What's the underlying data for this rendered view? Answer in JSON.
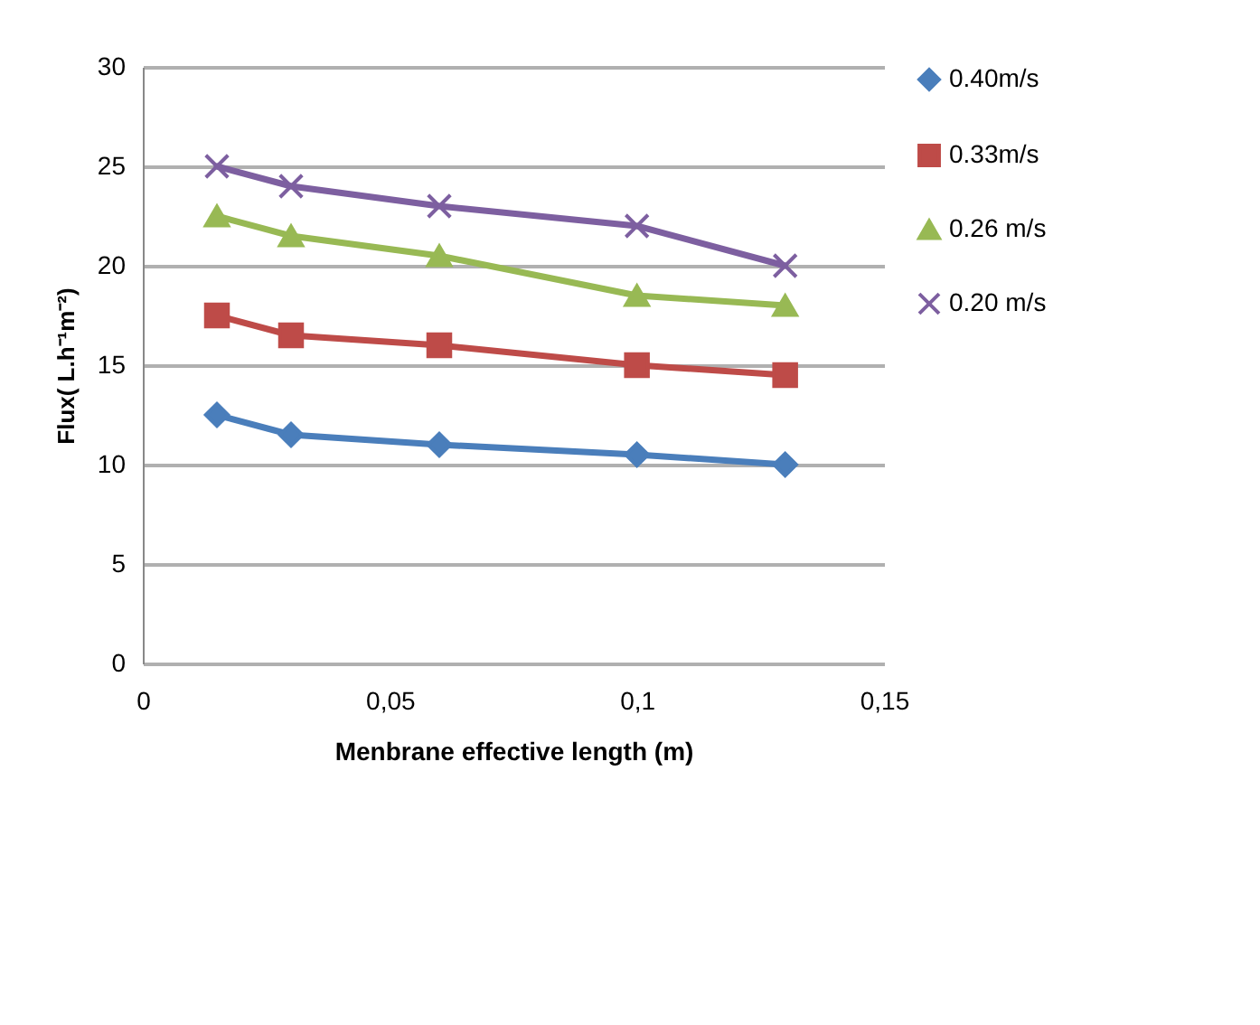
{
  "chart_data": {
    "type": "line",
    "xlabel": "Menbrane effective length (m)",
    "ylabel": "Flux( L.h⁻¹m⁻²)",
    "x": [
      0.015,
      0.03,
      0.06,
      0.1,
      0.13
    ],
    "series": [
      {
        "name": "0.40m/s",
        "color": "#4a7ebb",
        "marker": "diamond",
        "values": [
          12.5,
          11.5,
          11,
          10.5,
          10
        ]
      },
      {
        "name": "0.33m/s",
        "color": "#be4b48",
        "marker": "square",
        "values": [
          17.5,
          16.5,
          16,
          15,
          14.5
        ]
      },
      {
        "name": "0.26 m/s",
        "color": "#98b954",
        "marker": "triangle",
        "values": [
          22.5,
          21.5,
          20.5,
          18.5,
          18
        ]
      },
      {
        "name": "0.20 m/s",
        "color": "#7d5fa0",
        "marker": "cross",
        "values": [
          25,
          24,
          23,
          22,
          20
        ]
      }
    ],
    "xlim": [
      0,
      0.15
    ],
    "xticks": [
      0,
      {
        "value": 0.05,
        "label": "0,05"
      },
      {
        "value": 0.1,
        "label": "0,1"
      },
      {
        "value": 0.15,
        "label": "0,15"
      }
    ],
    "ylim": [
      0,
      30
    ],
    "yticks": [
      0,
      5,
      10,
      15,
      20,
      25,
      30
    ],
    "grid": "y",
    "legend": "right",
    "line_style": "solid"
  }
}
